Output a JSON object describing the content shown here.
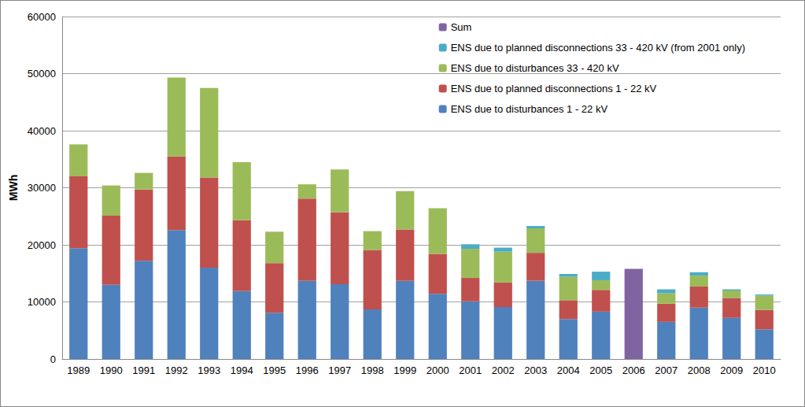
{
  "chart_data": {
    "type": "bar",
    "stacked": true,
    "y_label": "MWh",
    "categories": [
      "1989",
      "1990",
      "1991",
      "1992",
      "1993",
      "1994",
      "1995",
      "1996",
      "1997",
      "1998",
      "1999",
      "2000",
      "2001",
      "2002",
      "2003",
      "2004",
      "2005",
      "2006",
      "2007",
      "2008",
      "2009",
      "2010"
    ],
    "series": [
      {
        "name": "ENS due to disturbances 1 - 22 kV",
        "color": "#4F81BD",
        "values": [
          19400,
          13000,
          17200,
          22600,
          16000,
          11900,
          8100,
          13700,
          13100,
          8700,
          13700,
          11400,
          10100,
          9100,
          13700,
          7000,
          8300,
          null,
          6500,
          9000,
          7200,
          5200
        ]
      },
      {
        "name": "ENS due to planned disconnections 1 - 22 kV",
        "color": "#C0504D",
        "values": [
          12600,
          12100,
          12500,
          12900,
          15800,
          12400,
          8700,
          14400,
          12600,
          10400,
          9000,
          7000,
          4100,
          4300,
          4900,
          3300,
          3800,
          null,
          3200,
          3700,
          3500,
          3400
        ]
      },
      {
        "name": "ENS due to disturbances 33 - 420 kV",
        "color": "#9BBB59",
        "values": [
          5600,
          5300,
          2900,
          13800,
          15700,
          10200,
          5500,
          2500,
          7500,
          3300,
          6700,
          8000,
          5100,
          5400,
          4300,
          4100,
          1700,
          null,
          1800,
          1900,
          1300,
          2500
        ]
      },
      {
        "name": "ENS due to planned disconnections 33 - 420 kV (from 2001 only)",
        "color": "#4BACC6",
        "values": [
          null,
          null,
          null,
          null,
          null,
          null,
          null,
          null,
          null,
          null,
          null,
          null,
          800,
          700,
          400,
          500,
          1500,
          null,
          700,
          600,
          200,
          200
        ]
      },
      {
        "name": "Sum",
        "color": "#8064A2",
        "values": [
          null,
          null,
          null,
          null,
          null,
          null,
          null,
          null,
          null,
          null,
          null,
          null,
          null,
          null,
          null,
          null,
          null,
          15800,
          null,
          null,
          null,
          null
        ]
      }
    ],
    "ylim": [
      0,
      60000
    ],
    "yticks": [
      0,
      10000,
      20000,
      30000,
      40000,
      50000,
      60000
    ],
    "grid": true,
    "legend": "top-right"
  }
}
